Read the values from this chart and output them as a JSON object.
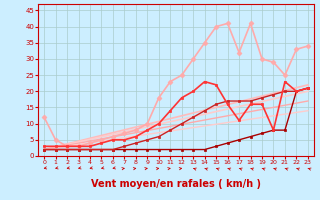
{
  "background_color": "#cceeff",
  "grid_color": "#aacccc",
  "xlabel": "Vent moyen/en rafales ( km/h )",
  "xlabel_color": "#cc0000",
  "xlabel_fontsize": 7,
  "ylabel_ticks": [
    0,
    5,
    10,
    15,
    20,
    25,
    30,
    35,
    40,
    45
  ],
  "xlim": [
    -0.5,
    23.5
  ],
  "ylim": [
    0,
    47
  ],
  "xticks": [
    0,
    1,
    2,
    3,
    4,
    5,
    6,
    7,
    8,
    9,
    10,
    11,
    12,
    13,
    14,
    15,
    16,
    17,
    18,
    19,
    20,
    21,
    22,
    23
  ],
  "lines": [
    {
      "x": [
        0,
        1,
        2,
        3,
        4,
        5,
        6,
        7,
        8,
        9,
        10,
        11,
        12,
        13,
        14,
        15,
        16,
        17,
        18,
        19,
        20,
        21,
        22,
        23
      ],
      "y": [
        2,
        2,
        2,
        2,
        2,
        2,
        2,
        2,
        2,
        2,
        2,
        2,
        2,
        2,
        2,
        3,
        4,
        5,
        6,
        7,
        8,
        8,
        20,
        21
      ],
      "color": "#aa0000",
      "lw": 1.0,
      "marker": "s",
      "ms": 1.5,
      "zorder": 5
    },
    {
      "x": [
        0,
        1,
        2,
        3,
        4,
        5,
        6,
        7,
        8,
        9,
        10,
        11,
        12,
        13,
        14,
        15,
        16,
        17,
        18,
        19,
        20,
        21,
        22,
        23
      ],
      "y": [
        2,
        2,
        2,
        2,
        2,
        2,
        2,
        3,
        4,
        5,
        6,
        8,
        10,
        12,
        14,
        16,
        17,
        17,
        17,
        18,
        19,
        20,
        20,
        21
      ],
      "color": "#cc2222",
      "lw": 1.0,
      "marker": "s",
      "ms": 1.8,
      "zorder": 5
    },
    {
      "x": [
        0,
        23
      ],
      "y": [
        2,
        22
      ],
      "color": "#ffbbbb",
      "lw": 1.2,
      "marker": null,
      "ms": 0,
      "zorder": 3
    },
    {
      "x": [
        0,
        23
      ],
      "y": [
        2,
        20
      ],
      "color": "#ffcccc",
      "lw": 1.2,
      "marker": null,
      "ms": 0,
      "zorder": 3
    },
    {
      "x": [
        0,
        23
      ],
      "y": [
        2,
        17
      ],
      "color": "#ffaaaa",
      "lw": 1.0,
      "marker": null,
      "ms": 0,
      "zorder": 3
    },
    {
      "x": [
        0,
        23
      ],
      "y": [
        2,
        14
      ],
      "color": "#ffcccc",
      "lw": 1.0,
      "marker": null,
      "ms": 0,
      "zorder": 3
    },
    {
      "x": [
        0,
        1,
        2,
        3,
        4,
        5,
        6,
        7,
        8,
        9,
        10,
        11,
        12,
        13,
        14,
        15,
        16,
        17,
        18,
        19,
        20,
        21,
        22,
        23
      ],
      "y": [
        3,
        3,
        3,
        3,
        3,
        4,
        5,
        5,
        6,
        8,
        10,
        14,
        18,
        20,
        23,
        22,
        16,
        11,
        16,
        16,
        8,
        23,
        20,
        21
      ],
      "color": "#ff3333",
      "lw": 1.2,
      "marker": "s",
      "ms": 2.0,
      "zorder": 6
    },
    {
      "x": [
        0,
        1,
        2,
        3,
        4,
        5,
        6,
        7,
        8,
        9,
        10,
        11,
        12,
        13,
        14,
        15,
        16,
        17,
        18,
        19,
        20,
        21,
        22,
        23
      ],
      "y": [
        12,
        5,
        3,
        3,
        4,
        5,
        6,
        7,
        8,
        10,
        18,
        23,
        25,
        30,
        35,
        40,
        41,
        32,
        41,
        30,
        29,
        25,
        33,
        34
      ],
      "color": "#ffaaaa",
      "lw": 1.2,
      "marker": "D",
      "ms": 2.5,
      "zorder": 4
    }
  ],
  "wind_arrows": {
    "y_data": -3.8,
    "color": "#cc0000",
    "angles": [
      210,
      210,
      210,
      210,
      210,
      210,
      210,
      30,
      30,
      30,
      30,
      30,
      30,
      135,
      135,
      135,
      135,
      135,
      135,
      135,
      135,
      135,
      135,
      135
    ]
  }
}
